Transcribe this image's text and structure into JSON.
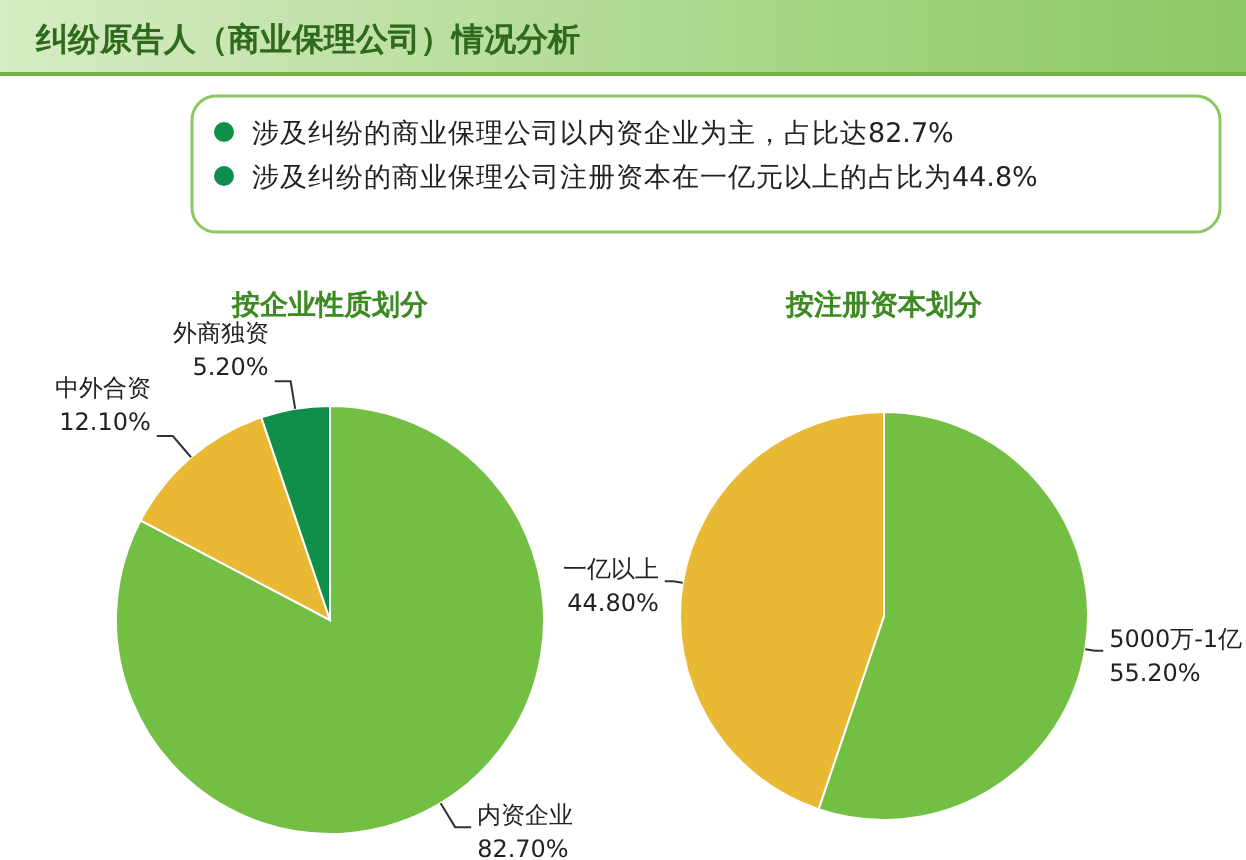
{
  "chart_data": [
    {
      "type": "other",
      "title": "纠纷原告人（商业保理公司）情况分析",
      "annotations": [
        "涉及纠纷的商业保理公司以内资企业为主，占比达82.7%",
        "涉及纠纷的商业保理公司注册资本在一亿元以上的占比为44.8%"
      ]
    },
    {
      "type": "pie",
      "title": "按企业性质划分",
      "categories": [
        "内资企业",
        "中外合资",
        "外商独资"
      ],
      "values": [
        82.7,
        12.1,
        5.2
      ],
      "colors": [
        "#72bf44",
        "#e9b934",
        "#0f8f4a"
      ],
      "value_labels": [
        "82.70%",
        "12.10%",
        "5.20%"
      ]
    },
    {
      "type": "pie",
      "title": "按注册资本划分",
      "categories": [
        "5000万-1亿",
        "一亿以上"
      ],
      "values": [
        55.2,
        44.8
      ],
      "colors": [
        "#72bf44",
        "#e9b934"
      ],
      "value_labels": [
        "55.20%",
        "44.80%"
      ]
    }
  ]
}
